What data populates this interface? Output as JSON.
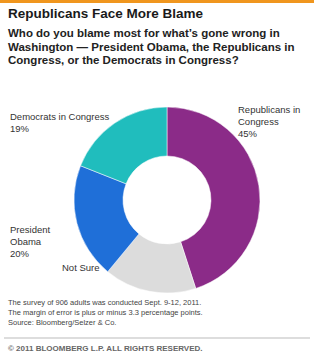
{
  "chart_data": {
    "type": "pie",
    "title": "Republicans Face More Blame",
    "subtitle": "Who do you blame most for what’s gone wrong in Washington — President Obama, the Republicans in Congress, or the Democrats in Congress?",
    "categories": [
      "Republicans in Congress",
      "Not Sure",
      "President Obama",
      "Democrats in Congress"
    ],
    "values": [
      45,
      16,
      20,
      19
    ],
    "value_labels": [
      "45%",
      null,
      "20%",
      "19%"
    ],
    "colors": [
      "#8b2b88",
      "#dcdcdc",
      "#1f6fd8",
      "#20bdbd"
    ],
    "data_labels": true,
    "notes": [
      "The survey of 906 adults was conducted Sept. 9-12, 2011.",
      "The margin of error is plus or minus 3.3 percentage points.",
      "Source: Bloomberg/Selzer & Co."
    ],
    "copyright": "© 2011 BLOOMBERG L.P. ALL RIGHTS RESERVED."
  }
}
